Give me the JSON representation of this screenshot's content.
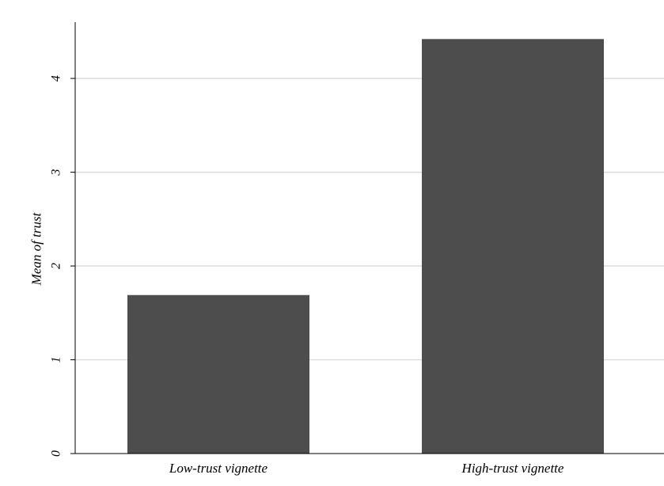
{
  "chart_data": {
    "type": "bar",
    "title": "",
    "xlabel": "",
    "ylabel": "Mean of trust",
    "categories": [
      "Low-trust vignette",
      "High-trust vignette"
    ],
    "values": [
      1.69,
      4.42
    ],
    "ylim": [
      0,
      4.6
    ],
    "yticks": [
      0,
      1,
      2,
      3,
      4
    ],
    "grid": true,
    "legend": "none",
    "colors": {
      "bar": "#4d4d4d",
      "grid": "#dcdcdc",
      "axis": "#000000",
      "background": "#ffffff"
    }
  }
}
